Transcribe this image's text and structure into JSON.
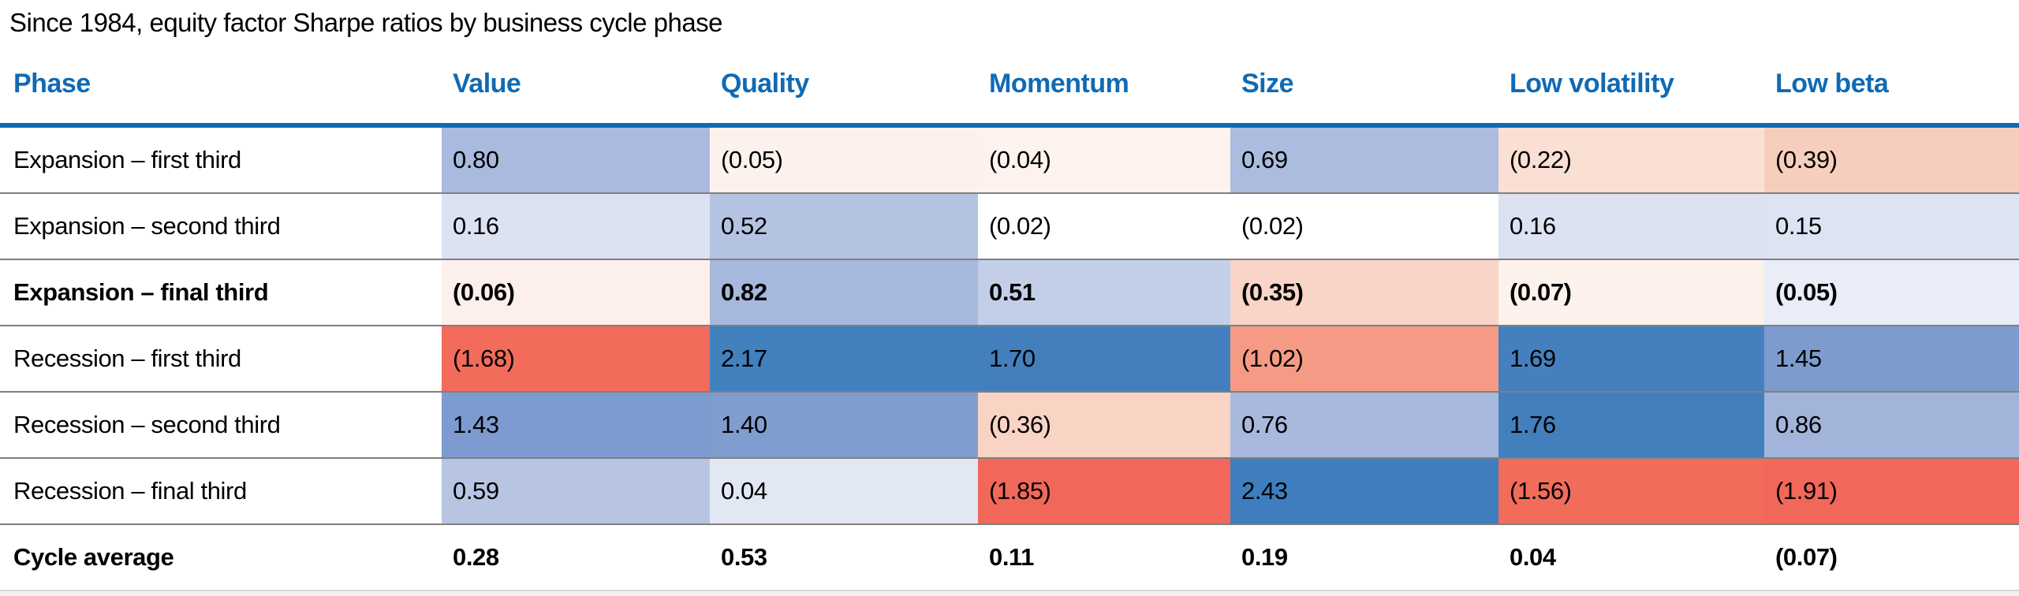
{
  "title": "Since 1984, equity factor Sharpe ratios by business cycle phase",
  "colors": {
    "header_text": "#0f6ab4",
    "header_rule": "#0f6ab4",
    "row_rule": "#7f7f7f",
    "bottom_rule": "#d9d9d9",
    "positive_strong": "#3f7ebe",
    "negative_strong": "#f1675a",
    "neutral": "#ffffff"
  },
  "table": {
    "columns": [
      "Phase",
      "Value",
      "Quality",
      "Momentum",
      "Size",
      "Low volatility",
      "Low beta"
    ],
    "rows": [
      {
        "label": "Expansion – first third",
        "bold": false,
        "cells": [
          {
            "text": "0.80",
            "bg": "#a9bade"
          },
          {
            "text": "(0.05)",
            "bg": "#fdf1ed"
          },
          {
            "text": "(0.04)",
            "bg": "#fdf2ee"
          },
          {
            "text": "0.69",
            "bg": "#abbcdf"
          },
          {
            "text": "(0.22)",
            "bg": "#fadfd3"
          },
          {
            "text": "(0.39)",
            "bg": "#f7cebd"
          }
        ]
      },
      {
        "label": "Expansion – second third",
        "bold": false,
        "cells": [
          {
            "text": "0.16",
            "bg": "#dce2f2"
          },
          {
            "text": "0.52",
            "bg": "#b4c3e2"
          },
          {
            "text": "(0.02)",
            "bg": "#ffffff"
          },
          {
            "text": "(0.02)",
            "bg": "#ffffff"
          },
          {
            "text": "0.16",
            "bg": "#dce2f2"
          },
          {
            "text": "0.15",
            "bg": "#dde3f2"
          }
        ]
      },
      {
        "label": "Expansion – final third",
        "bold": true,
        "cells": [
          {
            "text": "(0.06)",
            "bg": "#fdf0ec"
          },
          {
            "text": "0.82",
            "bg": "#a6b8dc"
          },
          {
            "text": "0.51",
            "bg": "#c3cfe9"
          },
          {
            "text": "(0.35)",
            "bg": "#f8d5c6"
          },
          {
            "text": "(0.07)",
            "bg": "#fdf1ec"
          },
          {
            "text": "(0.05)",
            "bg": "#e9edf7"
          }
        ]
      },
      {
        "label": "Recession – first third",
        "bold": false,
        "cells": [
          {
            "text": "(1.68)",
            "bg": "#f26b5b"
          },
          {
            "text": "2.17",
            "bg": "#4280be"
          },
          {
            "text": "1.70",
            "bg": "#447fbd"
          },
          {
            "text": "(1.02)",
            "bg": "#f59b85"
          },
          {
            "text": "1.69",
            "bg": "#4480be"
          },
          {
            "text": "1.45",
            "bg": "#7e9bce"
          }
        ]
      },
      {
        "label": "Recession – second third",
        "bold": false,
        "cells": [
          {
            "text": "1.43",
            "bg": "#7d9bd0"
          },
          {
            "text": "1.40",
            "bg": "#809dd0"
          },
          {
            "text": "(0.36)",
            "bg": "#f9d3c3"
          },
          {
            "text": "0.76",
            "bg": "#a8b9dd"
          },
          {
            "text": "1.76",
            "bg": "#447fbd"
          },
          {
            "text": "0.86",
            "bg": "#a2b4da"
          }
        ]
      },
      {
        "label": "Recession – final third",
        "bold": false,
        "cells": [
          {
            "text": "0.59",
            "bg": "#b7c5e3"
          },
          {
            "text": "0.04",
            "bg": "#e2e7f4"
          },
          {
            "text": "(1.85)",
            "bg": "#f1685a"
          },
          {
            "text": "2.43",
            "bg": "#3f7ebe"
          },
          {
            "text": "(1.56)",
            "bg": "#f26c5c"
          },
          {
            "text": "(1.91)",
            "bg": "#f1675a"
          }
        ]
      },
      {
        "label": "Cycle average",
        "bold": true,
        "cells": [
          {
            "text": "0.28",
            "bg": ""
          },
          {
            "text": "0.53",
            "bg": ""
          },
          {
            "text": "0.11",
            "bg": ""
          },
          {
            "text": "0.19",
            "bg": ""
          },
          {
            "text": "0.04",
            "bg": ""
          },
          {
            "text": "(0.07)",
            "bg": ""
          }
        ]
      }
    ]
  },
  "chart_data": {
    "type": "heatmap",
    "title": "Since 1984, equity factor Sharpe ratios by business cycle phase",
    "columns": [
      "Value",
      "Quality",
      "Momentum",
      "Size",
      "Low volatility",
      "Low beta"
    ],
    "rows": [
      "Expansion – first third",
      "Expansion – second third",
      "Expansion – final third",
      "Recession – first third",
      "Recession – second third",
      "Recession – final third",
      "Cycle average"
    ],
    "values": [
      [
        0.8,
        -0.05,
        -0.04,
        0.69,
        -0.22,
        -0.39
      ],
      [
        0.16,
        0.52,
        -0.02,
        -0.02,
        0.16,
        0.15
      ],
      [
        -0.06,
        0.82,
        0.51,
        -0.35,
        -0.07,
        -0.05
      ],
      [
        -1.68,
        2.17,
        1.7,
        -1.02,
        1.69,
        1.45
      ],
      [
        1.43,
        1.4,
        -0.36,
        0.76,
        1.76,
        0.86
      ],
      [
        0.59,
        0.04,
        -1.85,
        2.43,
        -1.56,
        -1.91
      ],
      [
        0.28,
        0.53,
        0.11,
        0.19,
        0.04,
        -0.07
      ]
    ],
    "notes": "Negative values displayed in parentheses; cell shading: blue = positive, red = negative, intensity scales with magnitude; Cycle average row unshaded",
    "color_scale": {
      "positive": "#3f7ebe",
      "neutral": "#ffffff",
      "negative": "#f1675a"
    }
  }
}
